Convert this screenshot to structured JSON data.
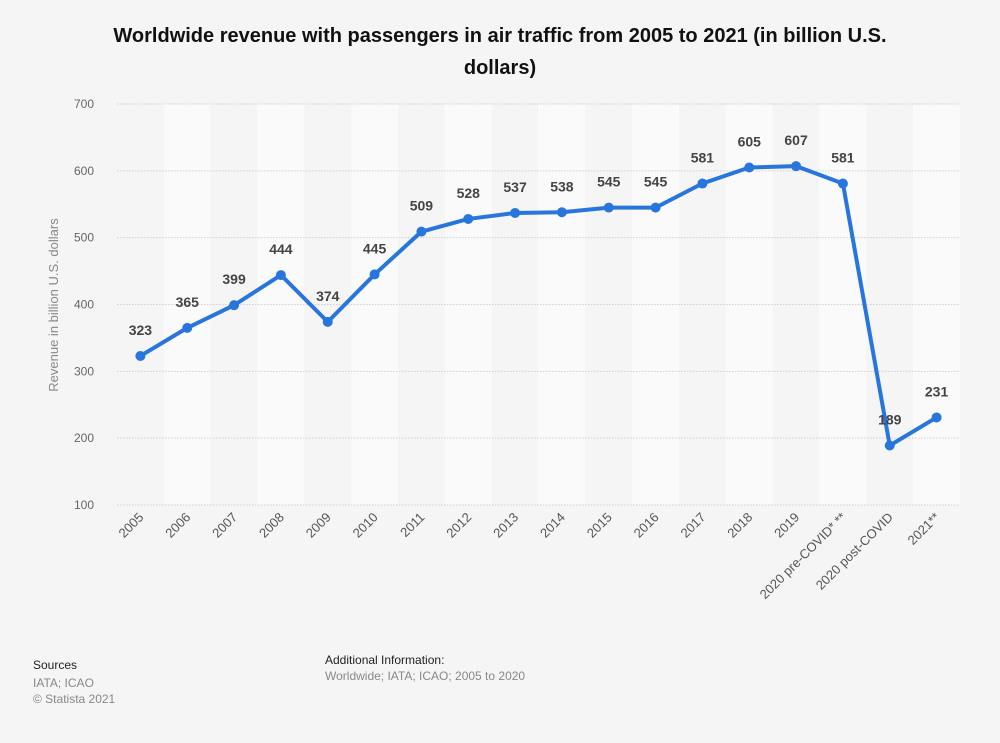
{
  "chart_data": {
    "type": "line",
    "title": "Worldwide revenue with passengers in air traffic from 2005 to 2021 (in billion U.S. dollars)",
    "xlabel": "",
    "ylabel": "Revenue in billion U.S. dollars",
    "ylim": [
      100,
      700
    ],
    "yticks": [
      100,
      200,
      300,
      400,
      500,
      600,
      700
    ],
    "grid": true,
    "categories": [
      "2005",
      "2006",
      "2007",
      "2008",
      "2009",
      "2010",
      "2011",
      "2012",
      "2013",
      "2014",
      "2015",
      "2016",
      "2017",
      "2018",
      "2019",
      "2020 pre-COVID* **",
      "2020 post-COVID",
      "2021**"
    ],
    "series": [
      {
        "name": "Revenue",
        "color": "#2876dd",
        "values": [
          323,
          365,
          399,
          444,
          374,
          445,
          509,
          528,
          537,
          538,
          545,
          545,
          581,
          605,
          607,
          581,
          189,
          231
        ]
      }
    ]
  },
  "footer": {
    "sources_heading": "Sources",
    "sources_text": "IATA; ICAO",
    "copyright": "© Statista 2021",
    "additional_heading": "Additional Information:",
    "additional_text": "Worldwide; IATA; ICAO; 2005 to 2020"
  }
}
